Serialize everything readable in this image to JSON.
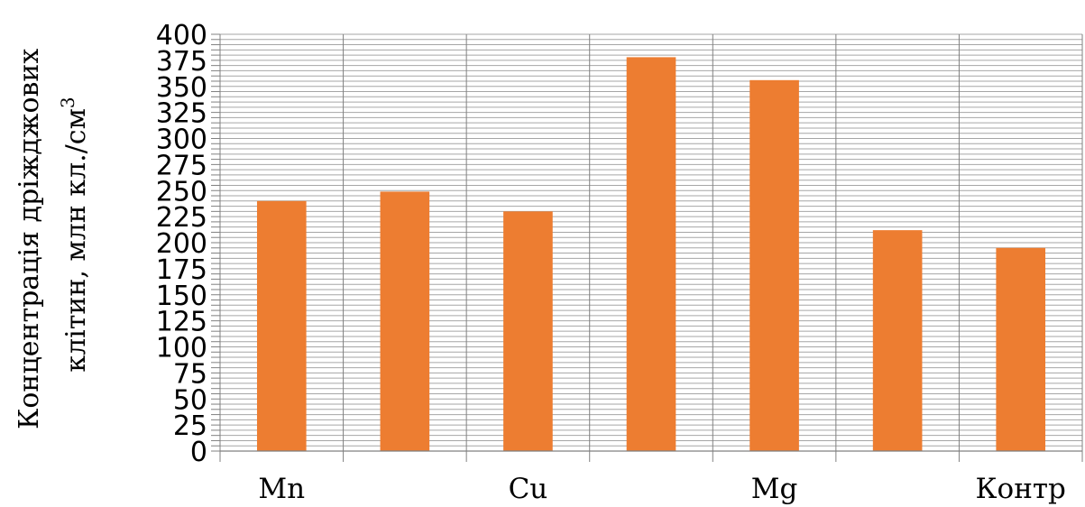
{
  "chart_data": {
    "type": "bar",
    "title": "",
    "xlabel": "",
    "ylabel_line1": "Концентрація дріжджових",
    "ylabel_line2": "клітин, млн кл./см",
    "ylabel_superscript": "3",
    "categories": [
      "Mn",
      "",
      "Cu",
      "",
      "Mg",
      "",
      "Контр"
    ],
    "values": [
      240,
      249,
      230,
      378,
      356,
      212,
      195
    ],
    "ylim": [
      0,
      400
    ],
    "major_ticks": [
      0,
      25,
      50,
      75,
      100,
      125,
      150,
      175,
      200,
      225,
      250,
      275,
      300,
      325,
      350,
      375,
      400
    ],
    "minor_grid_step": 5,
    "grid": true,
    "legend": "none",
    "colors": {
      "bar": "#ED7D31",
      "grid": "#A6A6A6",
      "axis": "#808080"
    }
  }
}
